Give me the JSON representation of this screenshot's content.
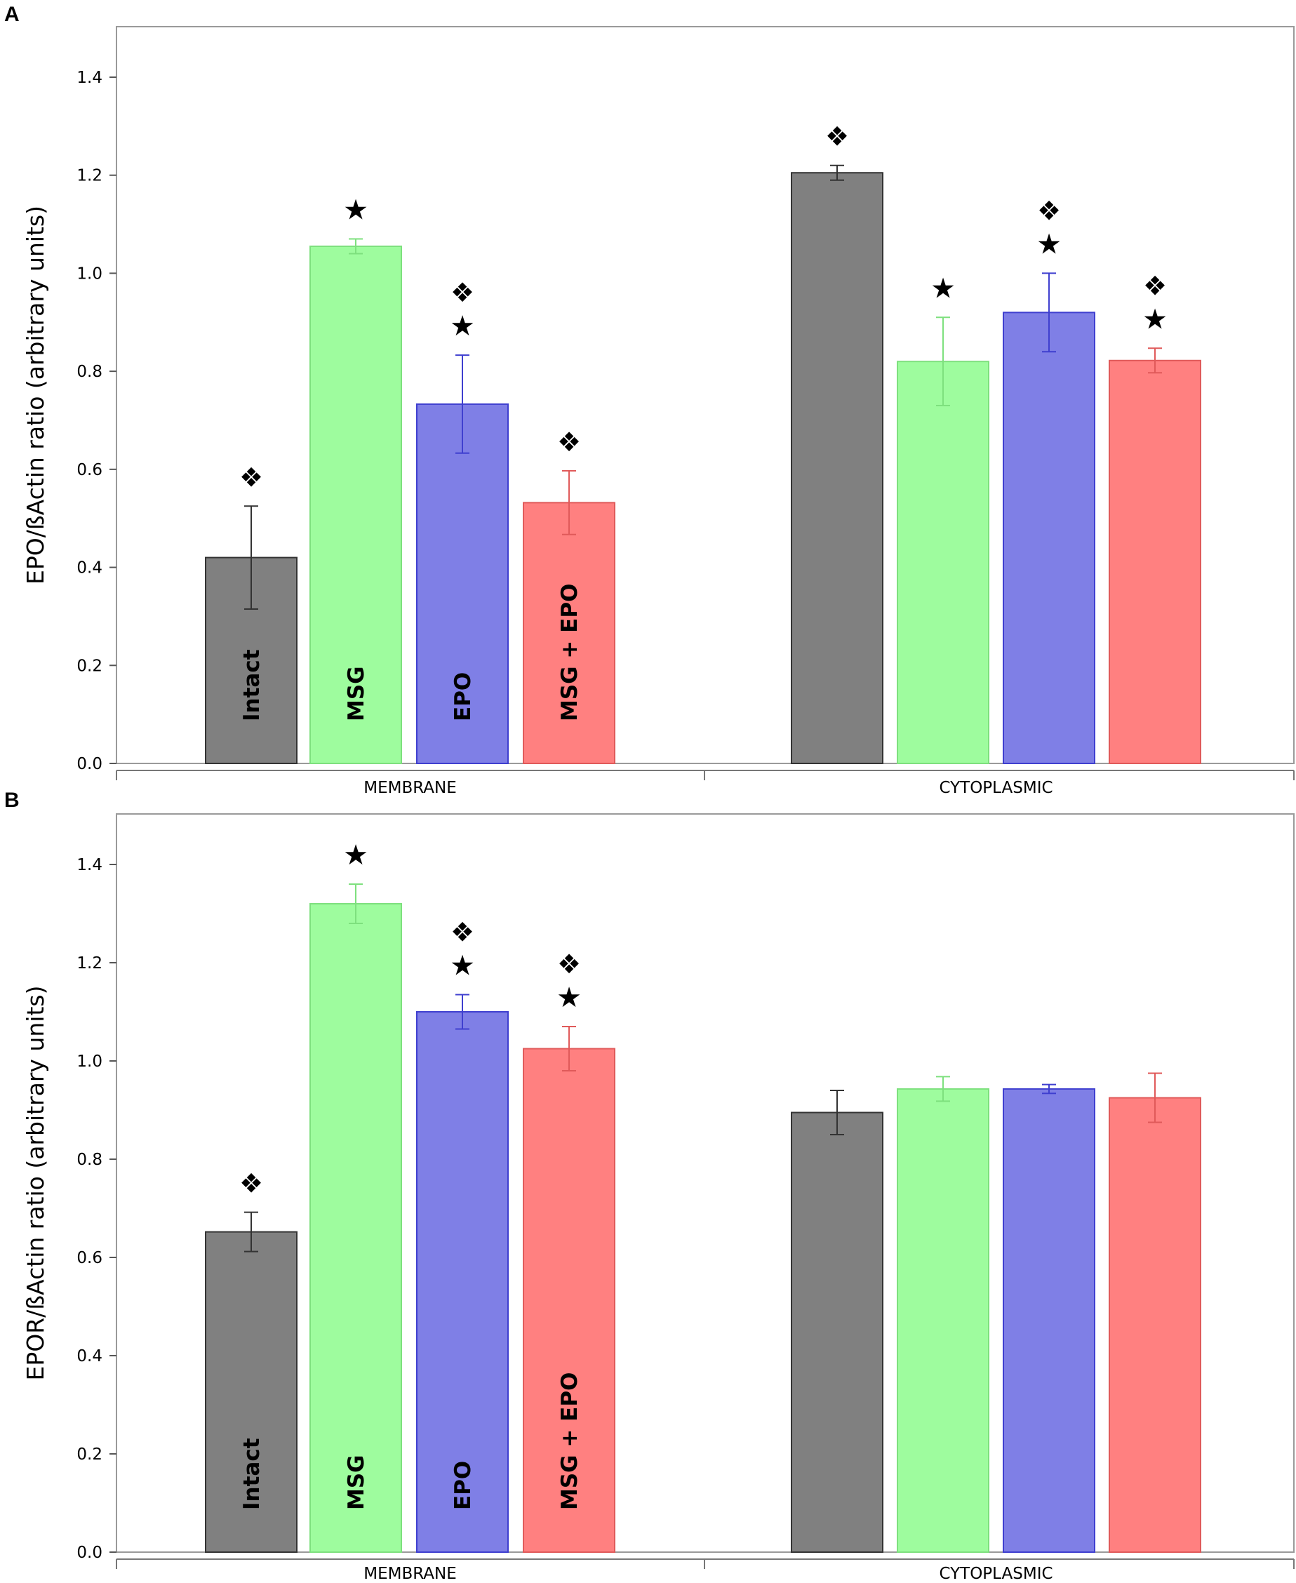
{
  "chart_data": [
    {
      "panel": "A",
      "type": "bar",
      "ylabel": "EPO/ßActin ratio (arbitrary units)",
      "ylim": [
        0,
        1.5
      ],
      "yticks": [
        "0.0",
        "0.2",
        "0.4",
        "0.6",
        "0.8",
        "1.0",
        "1.2",
        "1.4"
      ],
      "groups": [
        {
          "name": "MEMBRANE",
          "bars": [
            {
              "label": "Intact",
              "value": 0.42,
              "err_up": 0.525,
              "err_low": 0.315,
              "markers": [
                "❖"
              ]
            },
            {
              "label": "MSG",
              "value": 1.055,
              "err_up": 1.07,
              "err_low": 1.04,
              "markers": [
                "★"
              ]
            },
            {
              "label": "EPO",
              "value": 0.733,
              "err_up": 0.833,
              "err_low": 0.633,
              "markers": [
                "❖",
                "★"
              ]
            },
            {
              "label": "MSG + EPO",
              "value": 0.532,
              "err_up": 0.597,
              "err_low": 0.467,
              "markers": [
                "❖"
              ]
            }
          ]
        },
        {
          "name": "CYTOPLASMIC",
          "bars": [
            {
              "label": "",
              "value": 1.205,
              "err_up": 1.22,
              "err_low": 1.19,
              "markers": [
                "❖"
              ]
            },
            {
              "label": "",
              "value": 0.82,
              "err_up": 0.91,
              "err_low": 0.73,
              "markers": [
                "★"
              ]
            },
            {
              "label": "",
              "value": 0.92,
              "err_up": 1.0,
              "err_low": 0.84,
              "markers": [
                "❖",
                "★"
              ]
            },
            {
              "label": "",
              "value": 0.822,
              "err_up": 0.847,
              "err_low": 0.797,
              "markers": [
                "❖",
                "★"
              ]
            }
          ]
        }
      ]
    },
    {
      "panel": "B",
      "type": "bar",
      "ylabel": "EPOR/ßActin ratio (arbitrary units)",
      "ylim": [
        0,
        1.5
      ],
      "yticks": [
        "0.0",
        "0.2",
        "0.4",
        "0.6",
        "0.8",
        "1.0",
        "1.2",
        "1.4"
      ],
      "groups": [
        {
          "name": "MEMBRANE",
          "bars": [
            {
              "label": "Intact",
              "value": 0.652,
              "err_up": 0.692,
              "err_low": 0.612,
              "markers": [
                "❖"
              ]
            },
            {
              "label": "MSG",
              "value": 1.32,
              "err_up": 1.36,
              "err_low": 1.28,
              "markers": [
                "★"
              ]
            },
            {
              "label": "EPO",
              "value": 1.1,
              "err_up": 1.135,
              "err_low": 1.065,
              "markers": [
                "❖",
                "★"
              ]
            },
            {
              "label": "MSG + EPO",
              "value": 1.025,
              "err_up": 1.07,
              "err_low": 0.98,
              "markers": [
                "❖",
                "★"
              ]
            }
          ]
        },
        {
          "name": "CYTOPLASMIC",
          "bars": [
            {
              "label": "",
              "value": 0.895,
              "err_up": 0.94,
              "err_low": 0.85,
              "markers": []
            },
            {
              "label": "",
              "value": 0.943,
              "err_up": 0.968,
              "err_low": 0.918,
              "markers": []
            },
            {
              "label": "",
              "value": 0.943,
              "err_up": 0.952,
              "err_low": 0.934,
              "markers": []
            },
            {
              "label": "",
              "value": 0.925,
              "err_up": 0.975,
              "err_low": 0.875,
              "markers": []
            }
          ]
        }
      ]
    }
  ],
  "colors": {
    "fills": [
      "#808080",
      "#9efc9e",
      "#7f7fe6",
      "#ff8080"
    ],
    "edges": [
      "#333333",
      "#7ee07e",
      "#3f3fcf",
      "#e05a5a"
    ],
    "errors": [
      "#333333",
      "#7ee07e",
      "#3f3fcf",
      "#e05a5a"
    ]
  }
}
